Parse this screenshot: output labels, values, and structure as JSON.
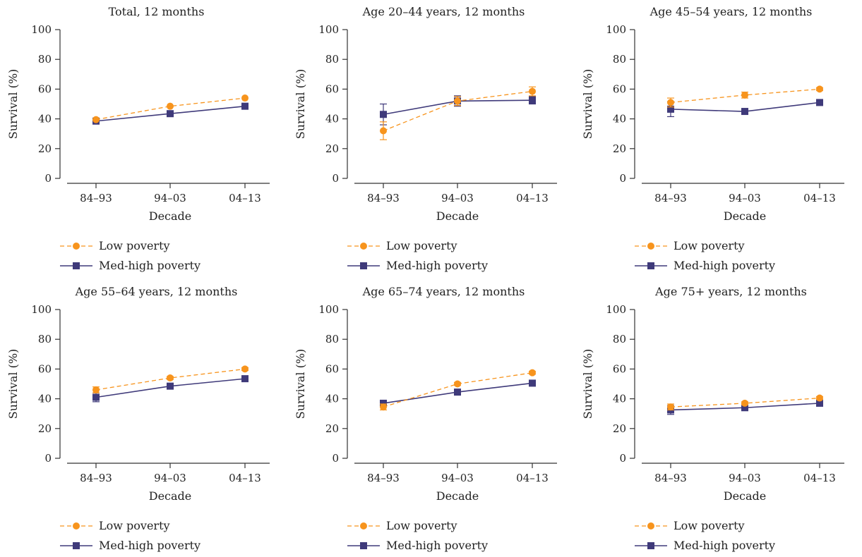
{
  "colors": {
    "low": "#F7941D",
    "med": "#3F3A7A",
    "axis": "#333333",
    "text": "#222222"
  },
  "legend": {
    "low_label": "Low poverty",
    "med_label": "Med-high poverty"
  },
  "chart_data": [
    {
      "type": "line",
      "title": "Total, 12 months",
      "xlabel": "Decade",
      "ylabel": "Survival (%)",
      "categories": [
        "84–93",
        "94–03",
        "04–13"
      ],
      "yticks": [
        "0",
        "20",
        "40",
        "60",
        "80",
        "100"
      ],
      "ylim": [
        0,
        100
      ],
      "series": [
        {
          "name": "Low poverty",
          "values": [
            39.5,
            48.5,
            54
          ],
          "err": [
            0.5,
            0.5,
            0.5
          ]
        },
        {
          "name": "Med-high poverty",
          "values": [
            38.5,
            43.5,
            48.5
          ],
          "err": [
            0.5,
            0.5,
            0.5
          ]
        }
      ]
    },
    {
      "type": "line",
      "title": "Age 20–44 years, 12 months",
      "xlabel": "Decade",
      "ylabel": "Survival (%)",
      "categories": [
        "84–93",
        "94–03",
        "04–13"
      ],
      "yticks": [
        "0",
        "20",
        "40",
        "60",
        "80",
        "100"
      ],
      "ylim": [
        0,
        100
      ],
      "series": [
        {
          "name": "Low poverty",
          "values": [
            32,
            52,
            58.5
          ],
          "err": [
            6,
            3,
            3
          ]
        },
        {
          "name": "Med-high poverty",
          "values": [
            43,
            52,
            52.5
          ],
          "err": [
            7,
            3.5,
            2.5
          ]
        }
      ]
    },
    {
      "type": "line",
      "title": "Age 45–54 years, 12 months",
      "xlabel": "Decade",
      "ylabel": "Survival (%)",
      "categories": [
        "84–93",
        "94–03",
        "04–13"
      ],
      "yticks": [
        "0",
        "20",
        "40",
        "60",
        "80",
        "100"
      ],
      "ylim": [
        0,
        100
      ],
      "series": [
        {
          "name": "Low poverty",
          "values": [
            51,
            56,
            60
          ],
          "err": [
            3,
            2,
            1
          ]
        },
        {
          "name": "Med-high poverty",
          "values": [
            46.5,
            45,
            51
          ],
          "err": [
            5,
            1,
            1
          ]
        }
      ]
    },
    {
      "type": "line",
      "title": "Age 55–64 years, 12 months",
      "xlabel": "Decade",
      "ylabel": "Survival (%)",
      "categories": [
        "84–93",
        "94–03",
        "04–13"
      ],
      "yticks": [
        "0",
        "20",
        "40",
        "60",
        "80",
        "100"
      ],
      "ylim": [
        0,
        100
      ],
      "series": [
        {
          "name": "Low poverty",
          "values": [
            46,
            54,
            60
          ],
          "err": [
            2,
            1,
            1
          ]
        },
        {
          "name": "Med-high poverty",
          "values": [
            41,
            48.5,
            53.5
          ],
          "err": [
            3,
            1,
            1
          ]
        }
      ]
    },
    {
      "type": "line",
      "title": "Age 65–74 years, 12 months",
      "xlabel": "Decade",
      "ylabel": "Survival (%)",
      "categories": [
        "84–93",
        "94–03",
        "04–13"
      ],
      "yticks": [
        "0",
        "20",
        "40",
        "60",
        "80",
        "100"
      ],
      "ylim": [
        0,
        100
      ],
      "series": [
        {
          "name": "Low poverty",
          "values": [
            34.5,
            50,
            57.5
          ],
          "err": [
            2,
            1,
            1
          ]
        },
        {
          "name": "Med-high poverty",
          "values": [
            37,
            44.5,
            50.5
          ],
          "err": [
            2,
            1,
            1
          ]
        }
      ]
    },
    {
      "type": "line",
      "title": "Age 75+ years, 12 months",
      "xlabel": "Decade",
      "ylabel": "Survival (%)",
      "categories": [
        "84–93",
        "94–03",
        "04–13"
      ],
      "yticks": [
        "0",
        "20",
        "40",
        "60",
        "80",
        "100"
      ],
      "ylim": [
        0,
        100
      ],
      "series": [
        {
          "name": "Low poverty",
          "values": [
            34.5,
            37,
            40.5
          ],
          "err": [
            2,
            1,
            1
          ]
        },
        {
          "name": "Med-high poverty",
          "values": [
            32.5,
            34,
            37
          ],
          "err": [
            3,
            1,
            1
          ]
        }
      ]
    }
  ]
}
